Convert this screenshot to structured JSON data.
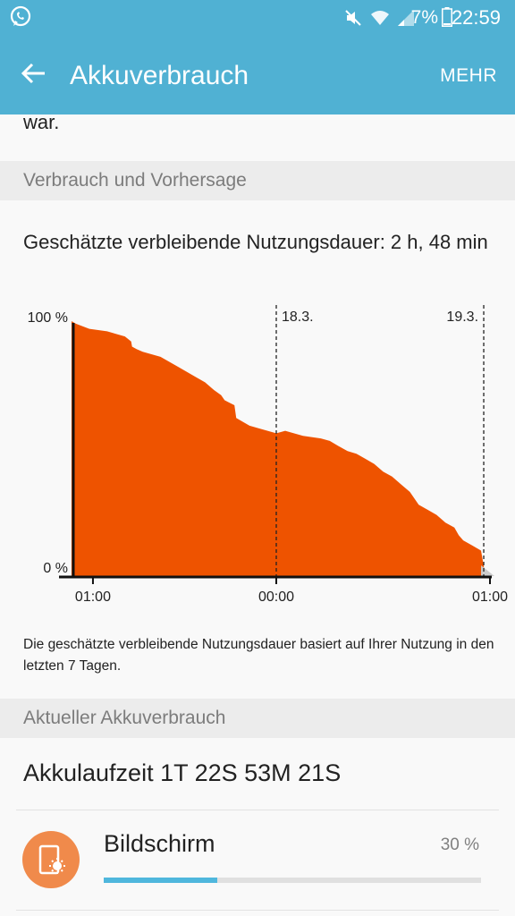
{
  "status_bar": {
    "battery_percent": "7%",
    "time": "22:59",
    "icons": [
      "whatsapp-icon",
      "mute-icon",
      "wifi-icon",
      "signal-icon",
      "battery-icon"
    ]
  },
  "app_bar": {
    "title": "Akkuverbrauch",
    "more_label": "MEHR"
  },
  "scrolled_text": "war.",
  "sections": {
    "forecast_header": "Verbrauch und Vorhersage",
    "current_header": "Aktueller Akkuverbrauch"
  },
  "estimate_text": "Geschätzte verbleibende Nutzungsdauer: 2 h, 48 min",
  "chart_data": {
    "type": "area",
    "title": "",
    "xlabel": "",
    "ylabel": "",
    "ylim": [
      0,
      100
    ],
    "y_tick_labels": [
      "100 %",
      "0 %"
    ],
    "x_tick_labels": [
      "01:00",
      "00:00",
      "01:00"
    ],
    "x_range_hours": [
      -1,
      47
    ],
    "x_tick_positions_hours": [
      0,
      23,
      47
    ],
    "day_markers": [
      {
        "label": "18.3.",
        "x": 23
      },
      {
        "label": "19.3.",
        "x": 46.3
      }
    ],
    "series": [
      {
        "values_hours": [
          0,
          0.5,
          2,
          4,
          6,
          6.7,
          6.8,
          7.3,
          8,
          10,
          12,
          14,
          15,
          16,
          16.8,
          17.2,
          18.3,
          18.5,
          19.5,
          20,
          21,
          23,
          24,
          26,
          28,
          29,
          30,
          31,
          32,
          33,
          34,
          35,
          36,
          37,
          38,
          39,
          40,
          41,
          42,
          43,
          43.5,
          44,
          45,
          46.0,
          46.5
        ],
        "values_percent": [
          100,
          99,
          97,
          96,
          94,
          92,
          90,
          89,
          88,
          86,
          82,
          78,
          76,
          73,
          71,
          69,
          67,
          62,
          60,
          59,
          58,
          56,
          57,
          55,
          54,
          53,
          51,
          49,
          48,
          46,
          44,
          41,
          39,
          36,
          33,
          28,
          26,
          24,
          21,
          19,
          16,
          14,
          12,
          10,
          0
        ]
      }
    ],
    "projection": {
      "from_hours": 46.0,
      "to_hours": 47.5
    },
    "colors": {
      "area": "#ee5300",
      "projection": "#cccccc"
    }
  },
  "note": "Die geschätzte verbleibende Nutzungsdauer basiert auf Ihrer Nutzung in den letzten 7 Tagen.",
  "uptime": "Akkulaufzeit 1T 22S 53M 21S",
  "usage_items": [
    {
      "label": "Bildschirm",
      "percent_text": "30 %",
      "fraction": 0.3,
      "icon": "screen-brightness-icon"
    }
  ]
}
